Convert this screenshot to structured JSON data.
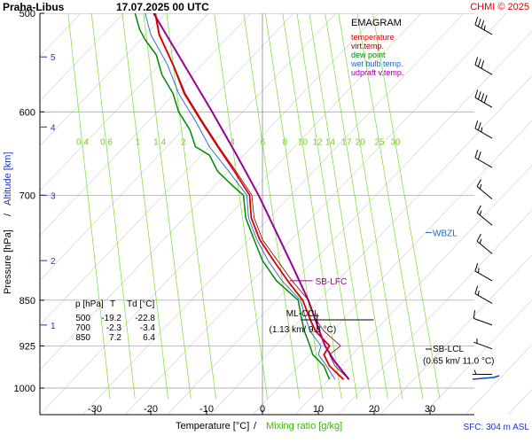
{
  "header": {
    "station": "Praha-Libus",
    "datetime": "17.07.2025 00 UTC",
    "copyright": "CHMI © 2025"
  },
  "footer": {
    "surface": "SFC: 304 m ASL"
  },
  "colors": {
    "temperature": "#dd0000",
    "virtual_temperature": "#880000",
    "dew_point": "#008800",
    "wet_bulb": "#2266cc",
    "parcel": "#990099",
    "mixing_ratio": "#77dd33",
    "isobar": "#999999",
    "dry_adiabat": "#cccccc",
    "altitude_label": "#2233bb",
    "wbzl": "#2266cc"
  },
  "chart_data": {
    "type": "line",
    "title": "EMAGRAM",
    "xlabel": "Temperature [°C]",
    "xlabel_mixing": "Mixing ratio [g/kg]",
    "ylabel_pressure": "Pressure [hPa]",
    "ylabel_altitude": "Altitude [km]",
    "xlim": [
      -40,
      35
    ],
    "ylim": [
      1020,
      500
    ],
    "y_scale": "log",
    "x_ticks": [
      -30,
      -20,
      -10,
      0,
      10,
      20,
      30
    ],
    "pressure_ticks": [
      500,
      600,
      700,
      850,
      925,
      1000
    ],
    "altitude_ticks": [
      {
        "label": "1",
        "p": 890
      },
      {
        "label": "2",
        "p": 790
      },
      {
        "label": "3",
        "p": 700
      },
      {
        "label": "4",
        "p": 617
      },
      {
        "label": "5",
        "p": 542
      }
    ],
    "mixing_ratio_labels": [
      "0.4",
      "0.6",
      "1",
      "1.4",
      "2",
      "4",
      "6",
      "8",
      "10",
      "12",
      "14",
      "17",
      "20",
      "25",
      "30"
    ],
    "mixing_ratio_values": [
      0.4,
      0.6,
      1,
      1.4,
      2,
      4,
      6,
      8,
      10,
      12,
      14,
      17,
      20,
      25,
      30
    ],
    "legend": [
      "temperature",
      "virt.temp.",
      "dew point",
      "wet bulb temp.",
      "udpraft v.temp."
    ],
    "series": [
      {
        "name": "temperature",
        "points": [
          [
            984,
            14.5
          ],
          [
            960,
            12
          ],
          [
            940,
            11
          ],
          [
            925,
            12
          ],
          [
            900,
            9.5
          ],
          [
            880,
            8.5
          ],
          [
            850,
            7.2
          ],
          [
            820,
            4.5
          ],
          [
            790,
            2
          ],
          [
            760,
            -0.5
          ],
          [
            730,
            -2
          ],
          [
            700,
            -2.3
          ],
          [
            670,
            -5
          ],
          [
            640,
            -8
          ],
          [
            610,
            -11
          ],
          [
            580,
            -14
          ],
          [
            550,
            -16
          ],
          [
            520,
            -18.5
          ],
          [
            500,
            -19.2
          ]
        ]
      },
      {
        "name": "virt.temp.",
        "points": [
          [
            984,
            15.5
          ],
          [
            960,
            13
          ],
          [
            940,
            12
          ],
          [
            925,
            14
          ],
          [
            900,
            11
          ],
          [
            880,
            9.5
          ],
          [
            850,
            8.2
          ],
          [
            820,
            5.3
          ],
          [
            790,
            2.7
          ],
          [
            760,
            0
          ],
          [
            730,
            -1.5
          ],
          [
            700,
            -1.9
          ],
          [
            670,
            -4.7
          ],
          [
            640,
            -7.8
          ],
          [
            610,
            -10.8
          ],
          [
            580,
            -13.8
          ],
          [
            550,
            -15.9
          ],
          [
            520,
            -18.4
          ],
          [
            500,
            -19.1
          ]
        ]
      },
      {
        "name": "dew point",
        "points": [
          [
            984,
            12
          ],
          [
            960,
            11
          ],
          [
            940,
            9
          ],
          [
            925,
            8.5
          ],
          [
            900,
            7.5
          ],
          [
            880,
            7
          ],
          [
            850,
            6.4
          ],
          [
            820,
            2.5
          ],
          [
            790,
            0
          ],
          [
            760,
            -1.5
          ],
          [
            730,
            -3
          ],
          [
            700,
            -3.4
          ],
          [
            690,
            -5
          ],
          [
            670,
            -8
          ],
          [
            650,
            -9.5
          ],
          [
            640,
            -12
          ],
          [
            620,
            -13
          ],
          [
            600,
            -15
          ],
          [
            580,
            -16
          ],
          [
            560,
            -18
          ],
          [
            540,
            -19
          ],
          [
            525,
            -21
          ],
          [
            515,
            -22
          ],
          [
            500,
            -22.8
          ]
        ]
      },
      {
        "name": "wet bulb temp.",
        "points": [
          [
            984,
            13
          ],
          [
            960,
            11.5
          ],
          [
            940,
            10
          ],
          [
            925,
            10.5
          ],
          [
            900,
            8.5
          ],
          [
            880,
            7.8
          ],
          [
            850,
            6.8
          ],
          [
            820,
            3.5
          ],
          [
            790,
            1
          ],
          [
            760,
            -1
          ],
          [
            730,
            -2.5
          ],
          [
            700,
            -2.8
          ],
          [
            670,
            -6
          ],
          [
            640,
            -9.5
          ],
          [
            610,
            -12
          ],
          [
            580,
            -15
          ],
          [
            550,
            -17
          ],
          [
            520,
            -20
          ],
          [
            500,
            -21
          ]
        ]
      },
      {
        "name": "udpraft v.temp.",
        "points": [
          [
            984,
            15.5
          ],
          [
            950,
            12.8
          ],
          [
            925,
            11.2
          ],
          [
            900,
            10.2
          ],
          [
            850,
            8.2
          ],
          [
            800,
            5.5
          ],
          [
            750,
            2.5
          ],
          [
            700,
            -0.7
          ],
          [
            650,
            -4.6
          ],
          [
            600,
            -9
          ],
          [
            550,
            -14
          ],
          [
            500,
            -19.5
          ]
        ]
      }
    ],
    "annotations": [
      {
        "label": "SB-LFC",
        "p": 820,
        "t": 5.5
      },
      {
        "label": "ML-CCL",
        "p": 880,
        "t": 7.2
      },
      {
        "label": "(1.13 km/ 9.8 °C)",
        "p": 893,
        "t": 7.2
      },
      {
        "label": "SB-LCL",
        "p": 935,
        "t": 30
      },
      {
        "label": "(0.65 km/ 11.0 °C)",
        "p": 950,
        "t": 30
      },
      {
        "label": "WBZL",
        "p": 750,
        "t": 30
      }
    ],
    "table": {
      "headers": [
        "p [hPa]",
        "T",
        "Td [°C]"
      ],
      "rows": [
        [
          "500",
          "-19.2",
          "-22.8"
        ],
        [
          "700",
          "-2.3",
          "-3.4"
        ],
        [
          "850",
          "7.2",
          "6.4"
        ]
      ]
    },
    "wind_barbs": [
      {
        "p": 520,
        "dir": 300,
        "speed_kt": 35
      },
      {
        "p": 560,
        "dir": 300,
        "speed_kt": 30
      },
      {
        "p": 595,
        "dir": 300,
        "speed_kt": 40
      },
      {
        "p": 630,
        "dir": 300,
        "speed_kt": 25
      },
      {
        "p": 665,
        "dir": 300,
        "speed_kt": 20
      },
      {
        "p": 705,
        "dir": 310,
        "speed_kt": 15
      },
      {
        "p": 740,
        "dir": 310,
        "speed_kt": 15
      },
      {
        "p": 780,
        "dir": 310,
        "speed_kt": 15
      },
      {
        "p": 820,
        "dir": 300,
        "speed_kt": 15
      },
      {
        "p": 855,
        "dir": 300,
        "speed_kt": 15
      },
      {
        "p": 890,
        "dir": 290,
        "speed_kt": 10
      },
      {
        "p": 930,
        "dir": 290,
        "speed_kt": 5
      },
      {
        "p": 975,
        "dir": 270,
        "speed_kt": 5
      }
    ]
  }
}
